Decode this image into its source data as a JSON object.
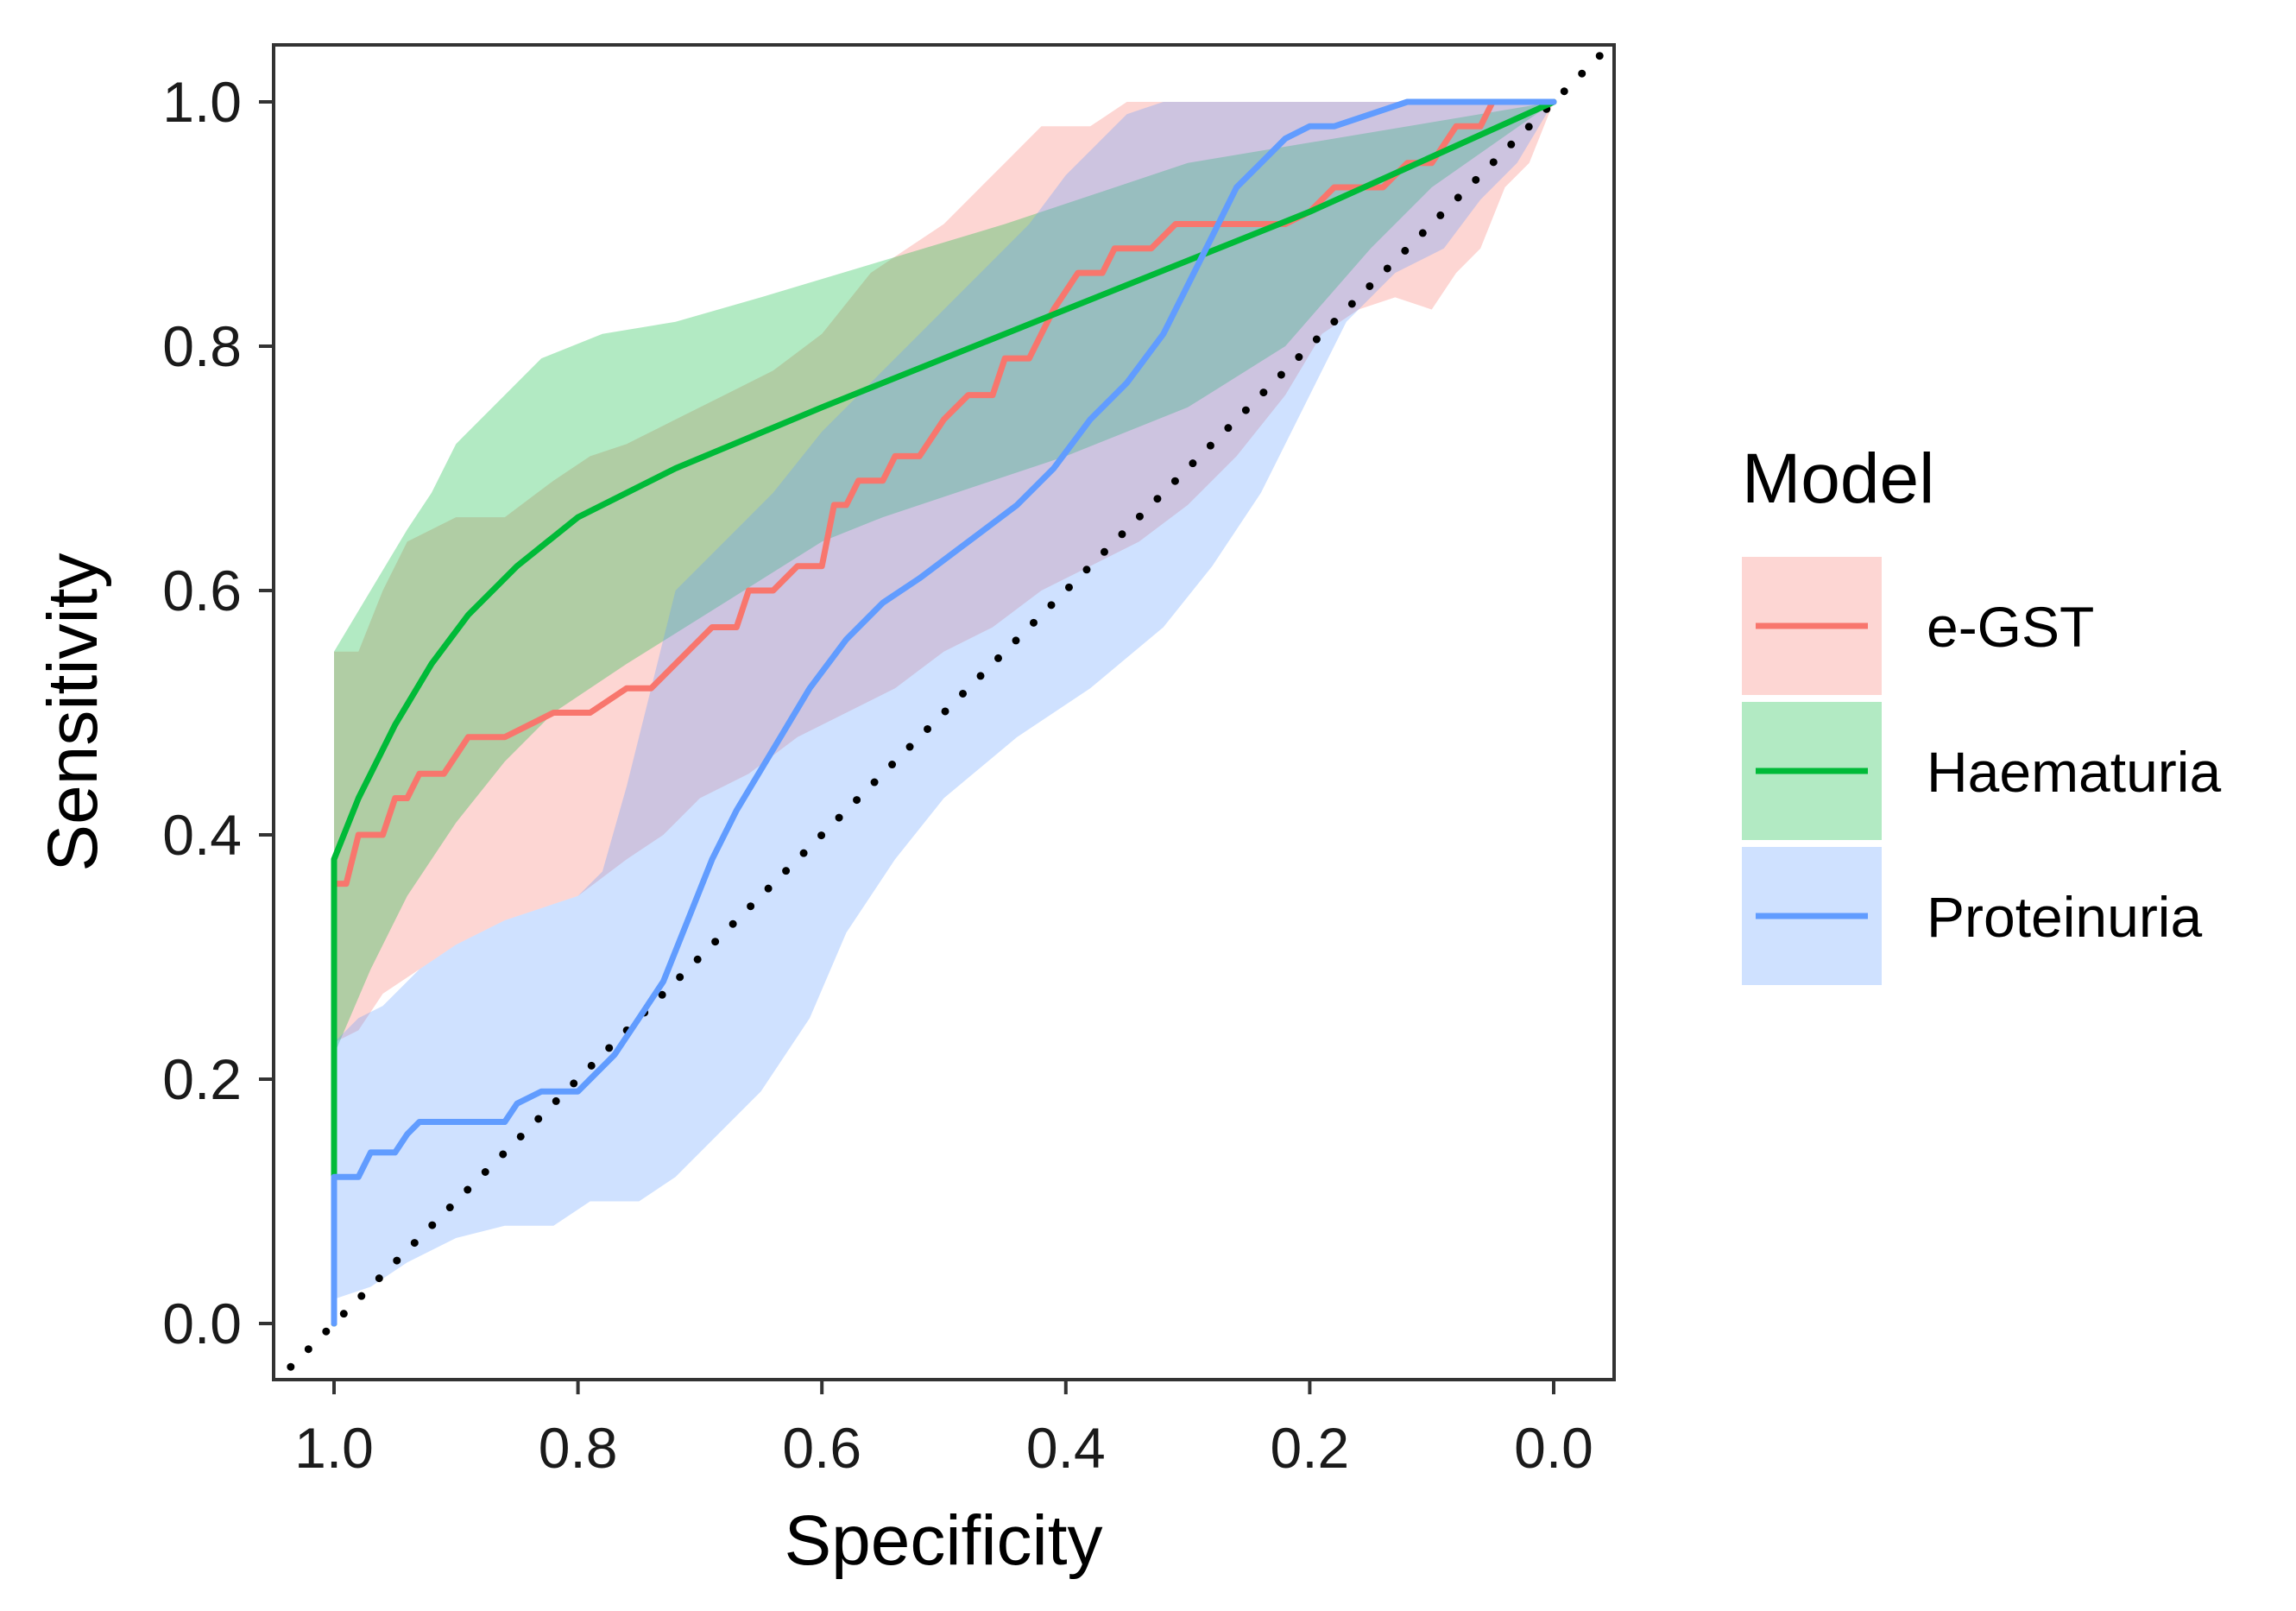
{
  "chart_data": {
    "type": "line",
    "xlabel": "Specificity",
    "ylabel": "Sensitivity",
    "xlim": [
      1.05,
      -0.05
    ],
    "ylim": [
      -0.05,
      1.05
    ],
    "x_reversed": true,
    "xticks": [
      "1.0",
      "0.8",
      "0.6",
      "0.4",
      "0.2",
      "0.0"
    ],
    "yticks": [
      "0.0",
      "0.2",
      "0.4",
      "0.6",
      "0.8",
      "1.0"
    ],
    "grid": false,
    "legend": {
      "title": "Model",
      "position": "right"
    },
    "reference_line": {
      "style": "dotted",
      "color": "#000000",
      "from": [
        1.0,
        0.0
      ],
      "to": [
        0.0,
        1.0
      ]
    },
    "series": [
      {
        "name": "e-GST",
        "color": "#F8766D",
        "line": [
          [
            1.0,
            0.0
          ],
          [
            1.0,
            0.36
          ],
          [
            0.99,
            0.36
          ],
          [
            0.98,
            0.4
          ],
          [
            0.96,
            0.4
          ],
          [
            0.95,
            0.43
          ],
          [
            0.94,
            0.43
          ],
          [
            0.93,
            0.45
          ],
          [
            0.91,
            0.45
          ],
          [
            0.89,
            0.48
          ],
          [
            0.86,
            0.48
          ],
          [
            0.82,
            0.5
          ],
          [
            0.79,
            0.5
          ],
          [
            0.76,
            0.52
          ],
          [
            0.74,
            0.52
          ],
          [
            0.71,
            0.55
          ],
          [
            0.69,
            0.57
          ],
          [
            0.67,
            0.57
          ],
          [
            0.66,
            0.6
          ],
          [
            0.64,
            0.6
          ],
          [
            0.62,
            0.62
          ],
          [
            0.6,
            0.62
          ],
          [
            0.59,
            0.67
          ],
          [
            0.58,
            0.67
          ],
          [
            0.57,
            0.69
          ],
          [
            0.55,
            0.69
          ],
          [
            0.54,
            0.71
          ],
          [
            0.52,
            0.71
          ],
          [
            0.5,
            0.74
          ],
          [
            0.48,
            0.76
          ],
          [
            0.46,
            0.76
          ],
          [
            0.45,
            0.79
          ],
          [
            0.43,
            0.79
          ],
          [
            0.42,
            0.81
          ],
          [
            0.41,
            0.83
          ],
          [
            0.39,
            0.86
          ],
          [
            0.37,
            0.86
          ],
          [
            0.36,
            0.88
          ],
          [
            0.33,
            0.88
          ],
          [
            0.31,
            0.9
          ],
          [
            0.22,
            0.9
          ],
          [
            0.2,
            0.91
          ],
          [
            0.18,
            0.93
          ],
          [
            0.14,
            0.93
          ],
          [
            0.12,
            0.95
          ],
          [
            0.1,
            0.95
          ],
          [
            0.08,
            0.98
          ],
          [
            0.06,
            0.98
          ],
          [
            0.05,
            1.0
          ],
          [
            0.0,
            1.0
          ]
        ],
        "band": {
          "upper": [
            [
              1.0,
              0.55
            ],
            [
              0.98,
              0.55
            ],
            [
              0.96,
              0.6
            ],
            [
              0.94,
              0.64
            ],
            [
              0.9,
              0.66
            ],
            [
              0.86,
              0.66
            ],
            [
              0.82,
              0.69
            ],
            [
              0.79,
              0.71
            ],
            [
              0.76,
              0.72
            ],
            [
              0.72,
              0.74
            ],
            [
              0.68,
              0.76
            ],
            [
              0.64,
              0.78
            ],
            [
              0.6,
              0.81
            ],
            [
              0.56,
              0.86
            ],
            [
              0.53,
              0.88
            ],
            [
              0.5,
              0.9
            ],
            [
              0.47,
              0.93
            ],
            [
              0.45,
              0.95
            ],
            [
              0.42,
              0.98
            ],
            [
              0.38,
              0.98
            ],
            [
              0.35,
              1.0
            ],
            [
              0.0,
              1.0
            ]
          ],
          "lower": [
            [
              1.0,
              0.23
            ],
            [
              0.98,
              0.24
            ],
            [
              0.96,
              0.27
            ],
            [
              0.93,
              0.29
            ],
            [
              0.9,
              0.31
            ],
            [
              0.86,
              0.33
            ],
            [
              0.8,
              0.35
            ],
            [
              0.76,
              0.38
            ],
            [
              0.73,
              0.4
            ],
            [
              0.7,
              0.43
            ],
            [
              0.66,
              0.45
            ],
            [
              0.62,
              0.48
            ],
            [
              0.58,
              0.5
            ],
            [
              0.54,
              0.52
            ],
            [
              0.5,
              0.55
            ],
            [
              0.46,
              0.57
            ],
            [
              0.42,
              0.6
            ],
            [
              0.38,
              0.62
            ],
            [
              0.34,
              0.64
            ],
            [
              0.3,
              0.67
            ],
            [
              0.26,
              0.71
            ],
            [
              0.22,
              0.76
            ],
            [
              0.19,
              0.81
            ],
            [
              0.16,
              0.83
            ],
            [
              0.13,
              0.84
            ],
            [
              0.1,
              0.83
            ],
            [
              0.08,
              0.86
            ],
            [
              0.06,
              0.88
            ],
            [
              0.04,
              0.93
            ],
            [
              0.02,
              0.95
            ],
            [
              0.0,
              1.0
            ]
          ]
        }
      },
      {
        "name": "Haematuria",
        "color": "#00BA38",
        "line": [
          [
            1.0,
            0.0
          ],
          [
            1.0,
            0.38
          ],
          [
            0.98,
            0.43
          ],
          [
            0.95,
            0.49
          ],
          [
            0.92,
            0.54
          ],
          [
            0.89,
            0.58
          ],
          [
            0.85,
            0.62
          ],
          [
            0.8,
            0.66
          ],
          [
            0.72,
            0.7
          ],
          [
            0.6,
            0.75
          ],
          [
            0.55,
            0.77
          ],
          [
            0.4,
            0.83
          ],
          [
            0.2,
            0.91
          ],
          [
            0.0,
            1.0
          ]
        ],
        "band": {
          "upper": [
            [
              1.0,
              0.55
            ],
            [
              0.97,
              0.6
            ],
            [
              0.94,
              0.65
            ],
            [
              0.92,
              0.68
            ],
            [
              0.9,
              0.72
            ],
            [
              0.86,
              0.76
            ],
            [
              0.83,
              0.79
            ],
            [
              0.78,
              0.81
            ],
            [
              0.72,
              0.82
            ],
            [
              0.65,
              0.84
            ],
            [
              0.55,
              0.87
            ],
            [
              0.45,
              0.9
            ],
            [
              0.3,
              0.95
            ],
            [
              0.0,
              1.0
            ]
          ],
          "lower": [
            [
              1.0,
              0.12
            ],
            [
              1.0,
              0.22
            ],
            [
              0.97,
              0.29
            ],
            [
              0.94,
              0.35
            ],
            [
              0.9,
              0.41
            ],
            [
              0.86,
              0.46
            ],
            [
              0.82,
              0.5
            ],
            [
              0.76,
              0.54
            ],
            [
              0.68,
              0.59
            ],
            [
              0.6,
              0.64
            ],
            [
              0.55,
              0.66
            ],
            [
              0.4,
              0.71
            ],
            [
              0.3,
              0.75
            ],
            [
              0.22,
              0.8
            ],
            [
              0.15,
              0.88
            ],
            [
              0.1,
              0.93
            ],
            [
              0.0,
              1.0
            ]
          ]
        }
      },
      {
        "name": "Proteinuria",
        "color": "#619CFF",
        "line": [
          [
            1.0,
            0.0
          ],
          [
            1.0,
            0.12
          ],
          [
            0.98,
            0.12
          ],
          [
            0.97,
            0.14
          ],
          [
            0.95,
            0.14
          ],
          [
            0.94,
            0.155
          ],
          [
            0.93,
            0.165
          ],
          [
            0.86,
            0.165
          ],
          [
            0.85,
            0.18
          ],
          [
            0.83,
            0.19
          ],
          [
            0.8,
            0.19
          ],
          [
            0.79,
            0.2
          ],
          [
            0.78,
            0.21
          ],
          [
            0.77,
            0.22
          ],
          [
            0.75,
            0.25
          ],
          [
            0.73,
            0.28
          ],
          [
            0.71,
            0.33
          ],
          [
            0.69,
            0.38
          ],
          [
            0.67,
            0.42
          ],
          [
            0.64,
            0.47
          ],
          [
            0.61,
            0.52
          ],
          [
            0.58,
            0.56
          ],
          [
            0.55,
            0.59
          ],
          [
            0.52,
            0.61
          ],
          [
            0.48,
            0.64
          ],
          [
            0.44,
            0.67
          ],
          [
            0.41,
            0.7
          ],
          [
            0.38,
            0.74
          ],
          [
            0.35,
            0.77
          ],
          [
            0.32,
            0.81
          ],
          [
            0.3,
            0.85
          ],
          [
            0.28,
            0.89
          ],
          [
            0.26,
            0.93
          ],
          [
            0.24,
            0.95
          ],
          [
            0.22,
            0.97
          ],
          [
            0.2,
            0.98
          ],
          [
            0.18,
            0.98
          ],
          [
            0.15,
            0.99
          ],
          [
            0.12,
            1.0
          ],
          [
            0.0,
            1.0
          ]
        ],
        "band": {
          "upper": [
            [
              1.0,
              0.23
            ],
            [
              0.98,
              0.25
            ],
            [
              0.96,
              0.26
            ],
            [
              0.93,
              0.29
            ],
            [
              0.9,
              0.31
            ],
            [
              0.86,
              0.33
            ],
            [
              0.8,
              0.35
            ],
            [
              0.78,
              0.37
            ],
            [
              0.76,
              0.44
            ],
            [
              0.74,
              0.52
            ],
            [
              0.72,
              0.6
            ],
            [
              0.68,
              0.64
            ],
            [
              0.64,
              0.68
            ],
            [
              0.6,
              0.73
            ],
            [
              0.55,
              0.78
            ],
            [
              0.5,
              0.83
            ],
            [
              0.46,
              0.87
            ],
            [
              0.43,
              0.9
            ],
            [
              0.4,
              0.94
            ],
            [
              0.37,
              0.97
            ],
            [
              0.35,
              0.99
            ],
            [
              0.32,
              1.0
            ],
            [
              0.0,
              1.0
            ]
          ],
          "lower": [
            [
              1.0,
              0.02
            ],
            [
              0.97,
              0.03
            ],
            [
              0.94,
              0.05
            ],
            [
              0.9,
              0.07
            ],
            [
              0.86,
              0.08
            ],
            [
              0.82,
              0.08
            ],
            [
              0.79,
              0.1
            ],
            [
              0.75,
              0.1
            ],
            [
              0.72,
              0.12
            ],
            [
              0.69,
              0.15
            ],
            [
              0.65,
              0.19
            ],
            [
              0.61,
              0.25
            ],
            [
              0.58,
              0.32
            ],
            [
              0.54,
              0.38
            ],
            [
              0.5,
              0.43
            ],
            [
              0.44,
              0.48
            ],
            [
              0.38,
              0.52
            ],
            [
              0.32,
              0.57
            ],
            [
              0.28,
              0.62
            ],
            [
              0.24,
              0.68
            ],
            [
              0.2,
              0.76
            ],
            [
              0.17,
              0.82
            ],
            [
              0.13,
              0.86
            ],
            [
              0.09,
              0.88
            ],
            [
              0.06,
              0.92
            ],
            [
              0.03,
              0.95
            ],
            [
              0.0,
              1.0
            ]
          ]
        }
      }
    ]
  }
}
